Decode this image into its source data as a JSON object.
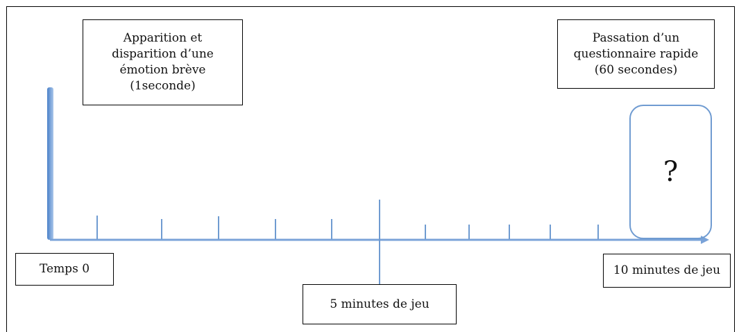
{
  "top_left_box": {
    "text": "Apparition et\ndisparition d’une\némotion brève\n(1seconde)"
  },
  "top_right_box": {
    "text": "Passation d’un\nquestionnaire rapide\n(60 secondes)"
  },
  "question_box": {
    "mark": "?"
  },
  "labels": {
    "start": "Temps 0",
    "middle": "5 minutes de jeu",
    "end": "10 minutes de jeu"
  },
  "colors": {
    "axis": "#5b8fd0",
    "axis_light": "#9cbde6",
    "rounded_box_border": "#6f9bd1",
    "text": "#111111",
    "box_border": "#000000"
  }
}
